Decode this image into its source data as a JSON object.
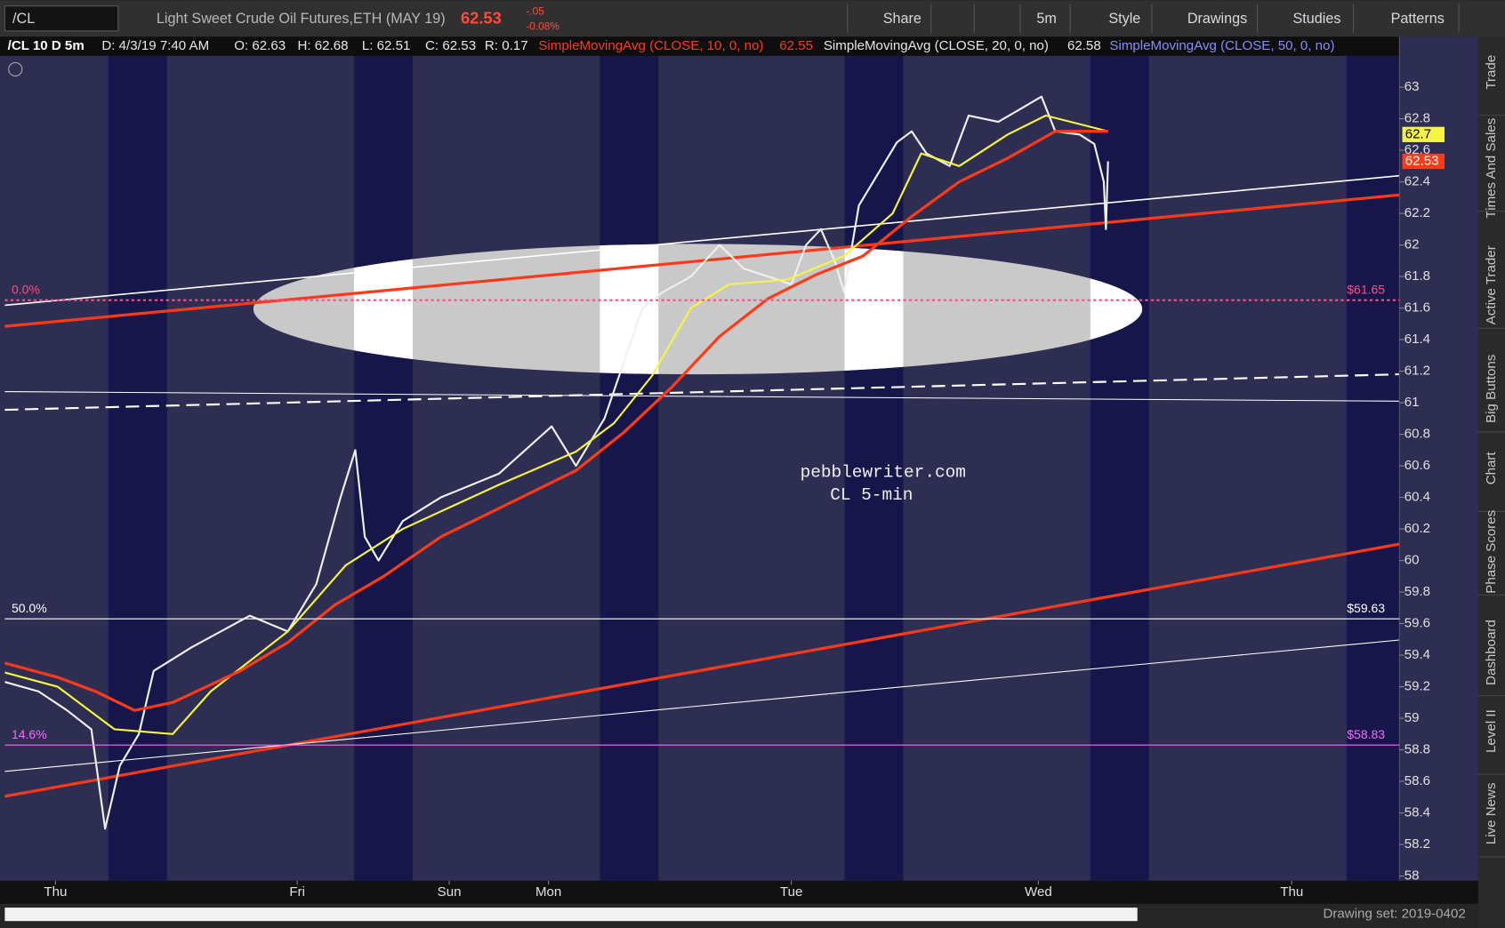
{
  "toolbar": {
    "symbol": "/CL",
    "description": "Light Sweet Crude Oil Futures,ETH (MAY 19)",
    "last": "62.53",
    "change": "-.05",
    "change_pct": "-0.08%",
    "buttons": [
      "Share",
      "5m",
      "Style",
      "Drawings",
      "Studies",
      "Patterns"
    ]
  },
  "info_bar": {
    "chart": "/CL 10 D 5m",
    "date": "D: 4/3/19 7:40 AM",
    "open": "O: 62.63",
    "high": "H: 62.68",
    "low": "L: 62.51",
    "close": "C: 62.53",
    "range": "R: 0.17",
    "sma10": "SimpleMovingAvg (CLOSE, 10, 0, no)",
    "sma10_value": "62.55",
    "sma20": "SimpleMovingAvg (CLOSE, 20, 0, no)",
    "sma20_value": "62.58",
    "sma50": "SimpleMovingAvg (CLOSE, 50, 0, no)"
  },
  "chart_data": {
    "type": "line",
    "xlim": [
      -4.8,
      127.3
    ],
    "xticks": [
      {
        "value": 0,
        "label": "Thu"
      },
      {
        "value": 22.9,
        "label": "Fri"
      },
      {
        "value": 37.3,
        "label": "Sun"
      },
      {
        "value": 46.7,
        "label": "Mon"
      },
      {
        "value": 69.7,
        "label": "Tue"
      },
      {
        "value": 93.1,
        "label": "Wed"
      },
      {
        "value": 117.1,
        "label": "Thu"
      }
    ],
    "ylim": [
      57.97,
      63.32
    ],
    "yticks": [
      58,
      58.2,
      58.4,
      58.6,
      58.8,
      59,
      59.2,
      59.4,
      59.6,
      59.8,
      60,
      60.2,
      60.4,
      60.6,
      60.8,
      61,
      61.2,
      61.4,
      61.6,
      61.8,
      62,
      62.2,
      62.4,
      62.6,
      62.8,
      63
    ],
    "series": [
      {
        "color": "#f0f0f0",
        "x": [
          -4.8,
          -1.6,
          1.1,
          3.4,
          4.7,
          6.1,
          7.9,
          9.3,
          12.9,
          18.4,
          22.0,
          24.7,
          27.0,
          28.4,
          29.3,
          30.6,
          32.9,
          36.5,
          42.0,
          47.0,
          49.3,
          52.0,
          53.8,
          55.6,
          57.5,
          60.2,
          62.9,
          65.2,
          67.5,
          69.7,
          71.1,
          72.5,
          73.8,
          74.7,
          76.1,
          77.9,
          79.7,
          81.1,
          82.5,
          84.7,
          86.5,
          89.3,
          91.1,
          93.4,
          94.7,
          97.0,
          98.4,
          99.3,
          99.5,
          99.7
        ],
        "values": [
          59.23,
          59.17,
          59.05,
          58.93,
          58.3,
          58.7,
          58.9,
          59.3,
          59.45,
          59.65,
          59.55,
          59.85,
          60.4,
          60.7,
          60.15,
          60.0,
          60.25,
          60.4,
          60.55,
          60.85,
          60.6,
          60.9,
          61.25,
          61.6,
          61.7,
          61.8,
          62.0,
          61.85,
          61.8,
          61.75,
          62.0,
          62.1,
          61.9,
          61.7,
          62.25,
          62.45,
          62.65,
          62.72,
          62.58,
          62.5,
          62.82,
          62.78,
          62.85,
          62.94,
          62.72,
          62.7,
          62.64,
          62.4,
          62.1,
          62.53
        ]
      },
      {
        "color": "#f5f542",
        "x": [
          -4.8,
          0.2,
          5.6,
          11.1,
          14.7,
          22.0,
          27.5,
          32.9,
          42.0,
          49.3,
          52.9,
          56.5,
          60.2,
          63.8,
          69.3,
          74.7,
          79.3,
          82.0,
          85.6,
          90.2,
          93.8,
          99.7
        ],
        "values": [
          59.29,
          59.2,
          58.93,
          58.9,
          59.17,
          59.55,
          59.97,
          60.2,
          60.48,
          60.69,
          60.87,
          61.17,
          61.6,
          61.75,
          61.78,
          61.93,
          62.2,
          62.58,
          62.5,
          62.7,
          62.82,
          62.72
        ]
      },
      {
        "color": "#ff3a1a",
        "x": [
          -4.8,
          0.2,
          3.8,
          7.5,
          11.1,
          17.5,
          22.0,
          26.5,
          31.1,
          36.5,
          42.0,
          49.3,
          53.8,
          58.4,
          62.9,
          67.5,
          72.0,
          76.5,
          81.1,
          85.6,
          90.2,
          94.7,
          99.7
        ],
        "values": [
          59.35,
          59.26,
          59.17,
          59.05,
          59.1,
          59.3,
          59.48,
          59.72,
          59.9,
          60.15,
          60.33,
          60.57,
          60.81,
          61.1,
          61.42,
          61.66,
          61.81,
          61.93,
          62.18,
          62.4,
          62.55,
          62.72,
          62.72
        ]
      }
    ],
    "levels": [
      {
        "name": "0.0%",
        "value": 61.65,
        "label": "$61.65",
        "color": "#ff4d8a"
      },
      {
        "name": "50.0%",
        "value": 59.63,
        "label": "$59.63",
        "color": "#ffffff"
      },
      {
        "name": "14.6%",
        "value": 58.83,
        "label": "$58.83",
        "color": "#ff66ff"
      }
    ],
    "price_tags": [
      {
        "value": 62.7,
        "color": "#f5f542"
      },
      {
        "value": 62.53,
        "label": "62.53",
        "color": "#ff3a1a"
      }
    ]
  },
  "watermark": [
    "pebblewriter.com",
    "CL 5-min"
  ],
  "side_tabs": [
    "Trade",
    "Times And Sales",
    "Active Trader",
    "Big Buttons",
    "Chart",
    "Phase Scores",
    "Dashboard",
    "Level II",
    "Live News"
  ],
  "status": {
    "drawing_set": "Drawing set: 2019-0402"
  }
}
